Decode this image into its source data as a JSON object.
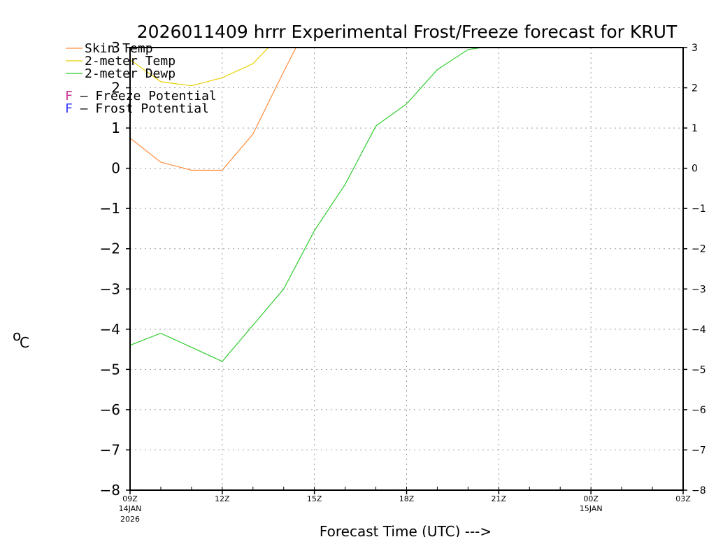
{
  "chart_data": {
    "type": "line",
    "title": "2026011409 hrrr Experimental Frost/Freeze forecast for KRUT",
    "ylabel": "°C",
    "ylabel_sup": "o",
    "ylabel_unit": "C",
    "xlabel": "Forecast Time (UTC) --->",
    "ylim": [
      -8,
      3
    ],
    "yticks": [
      3,
      2,
      1,
      0,
      -1,
      -2,
      -3,
      -4,
      -5,
      -6,
      -7,
      -8
    ],
    "ytick_labels": [
      "3",
      "2",
      "1",
      "0",
      "−1",
      "−2",
      "−3",
      "−4",
      "−5",
      "−6",
      "−7",
      "−8"
    ],
    "xlim": [
      0,
      18
    ],
    "xticks": [
      {
        "x": 0,
        "label": "09Z",
        "sub1": "14JAN",
        "sub2": "2026"
      },
      {
        "x": 3,
        "label": "12Z",
        "sub1": "",
        "sub2": ""
      },
      {
        "x": 6,
        "label": "15Z",
        "sub1": "",
        "sub2": ""
      },
      {
        "x": 9,
        "label": "18Z",
        "sub1": "",
        "sub2": ""
      },
      {
        "x": 12,
        "label": "21Z",
        "sub1": "",
        "sub2": ""
      },
      {
        "x": 15,
        "label": "00Z",
        "sub1": "15JAN",
        "sub2": ""
      },
      {
        "x": 18,
        "label": "03Z",
        "sub1": "",
        "sub2": ""
      }
    ],
    "grid": true,
    "series": [
      {
        "name": "Skin Temp",
        "color": "#ff8c3c",
        "legend_label": "Skin Temp",
        "x": [
          0,
          1,
          2,
          3,
          4,
          5,
          5.4
        ],
        "values": [
          0.75,
          0.15,
          -0.05,
          -0.05,
          0.85,
          2.4,
          3.0
        ]
      },
      {
        "name": "2-meter Temp",
        "color": "#e8d000",
        "legend_label": "2-meter Temp",
        "x": [
          0,
          1,
          2,
          3,
          4,
          4.5
        ],
        "values": [
          2.7,
          2.15,
          2.05,
          2.25,
          2.6,
          3.0
        ]
      },
      {
        "name": "2-meter Dewp",
        "color": "#2ecc2e",
        "legend_label": "2-meter Dewp",
        "x": [
          0,
          1,
          2,
          3,
          4,
          5,
          6,
          7,
          8,
          9,
          10,
          11,
          11.45
        ],
        "values": [
          -4.4,
          -4.1,
          -4.45,
          -4.8,
          -3.9,
          -3.0,
          -1.55,
          -0.4,
          1.05,
          1.6,
          2.45,
          2.95,
          3.0
        ]
      }
    ],
    "potential_legend": [
      {
        "letter": "F",
        "text": " – Freeze Potential",
        "color": "#cc3399"
      },
      {
        "letter": "F",
        "text": " – Frost Potential",
        "color": "#3333ff"
      }
    ]
  }
}
